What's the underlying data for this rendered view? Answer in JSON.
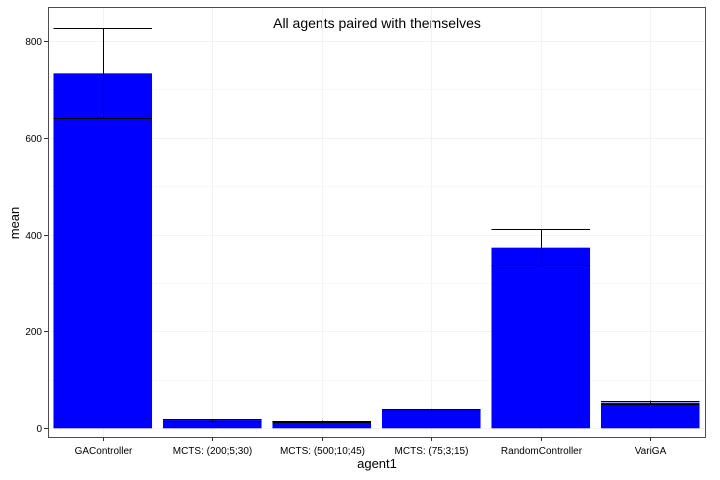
{
  "chart_data": {
    "type": "bar",
    "title": "All agents paired with themselves",
    "xlabel": "agent1",
    "ylabel": "mean",
    "categories": [
      "GAController",
      "MCTS: (200;5;30)",
      "MCTS: (500;10;45)",
      "MCTS: (75;3;15)",
      "RandomController",
      "VariGA"
    ],
    "values": [
      733,
      17,
      15,
      38,
      373,
      53
    ],
    "error_low": [
      640,
      15,
      14,
      36,
      337,
      51
    ],
    "error_high": [
      826,
      19,
      16,
      40,
      411,
      57
    ],
    "yticks": [
      0,
      200,
      400,
      600,
      800
    ],
    "ylim": [
      -18,
      870
    ],
    "bar_color": "#0000ff",
    "grid": true,
    "legend": "none"
  }
}
